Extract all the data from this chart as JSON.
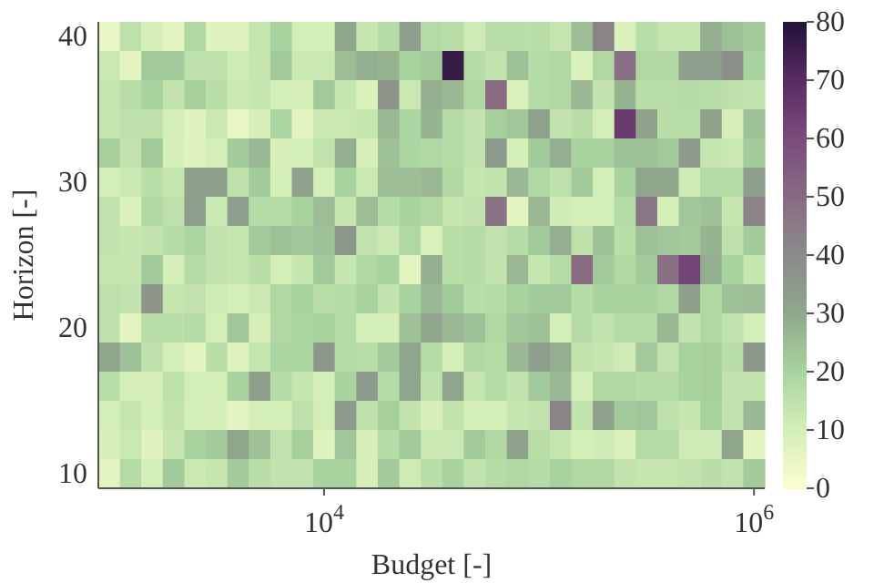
{
  "chart_data": {
    "type": "heatmap",
    "xlabel": "Budget [-]",
    "ylabel": "Horizon [-]",
    "categories": [
      null,
      null,
      null,
      null,
      null,
      null,
      null,
      null,
      null,
      null,
      "10$^{4}$",
      null,
      null,
      null,
      null,
      null,
      null,
      null,
      null,
      null,
      null,
      null,
      null,
      null,
      null,
      null,
      null,
      null,
      null,
      null,
      "10$^{6}$"
    ],
    "y_categories": [
      "40",
      null,
      null,
      null,
      null,
      "30",
      null,
      null,
      null,
      null,
      "20",
      null,
      null,
      null,
      null,
      "10"
    ],
    "clim": [
      0,
      80
    ],
    "cticks": [
      0,
      10,
      20,
      30,
      40,
      50,
      60,
      70,
      80
    ],
    "cells": [
      [
        5,
        15,
        9,
        6,
        18,
        7,
        7,
        13,
        20,
        10,
        10,
        30,
        13,
        17,
        32,
        17,
        16,
        11,
        16,
        16,
        16,
        13,
        25,
        42,
        8,
        16,
        13,
        13,
        28,
        24,
        22
      ],
      [
        12,
        6,
        22,
        22,
        15,
        15,
        11,
        13,
        22,
        12,
        12,
        25,
        28,
        27,
        20,
        22,
        76,
        17,
        14,
        24,
        17,
        18,
        8,
        18,
        48,
        18,
        18,
        33,
        33,
        38,
        20
      ],
      [
        13,
        16,
        20,
        14,
        21,
        16,
        12,
        13,
        10,
        9,
        22,
        13,
        8,
        36,
        12,
        28,
        26,
        18,
        50,
        8,
        17,
        18,
        26,
        14,
        27,
        16,
        16,
        17,
        16,
        15,
        14
      ],
      [
        13,
        15,
        15,
        10,
        7,
        12,
        5,
        9,
        19,
        6,
        12,
        12,
        13,
        26,
        19,
        27,
        17,
        14,
        21,
        23,
        31,
        14,
        16,
        10,
        65,
        31,
        16,
        16,
        31,
        9,
        24
      ],
      [
        21,
        14,
        22,
        9,
        7,
        10,
        22,
        26,
        9,
        10,
        14,
        28,
        9,
        24,
        19,
        18,
        17,
        14,
        34,
        10,
        22,
        28,
        20,
        20,
        24,
        24,
        22,
        34,
        13,
        12,
        22
      ],
      [
        10,
        12,
        16,
        13,
        32,
        32,
        15,
        22,
        10,
        31,
        10,
        20,
        12,
        25,
        25,
        26,
        18,
        13,
        14,
        26,
        18,
        15,
        22,
        10,
        20,
        30,
        30,
        11,
        17,
        17,
        33
      ],
      [
        14,
        8,
        18,
        15,
        33,
        12,
        33,
        17,
        17,
        20,
        25,
        13,
        25,
        17,
        20,
        18,
        13,
        14,
        47,
        6,
        26,
        11,
        10,
        10,
        17,
        46,
        10,
        23,
        24,
        13,
        42
      ],
      [
        14,
        13,
        14,
        17,
        19,
        14,
        13,
        22,
        24,
        23,
        24,
        35,
        14,
        12,
        18,
        8,
        16,
        17,
        14,
        17,
        22,
        28,
        15,
        24,
        16,
        24,
        23,
        22,
        27,
        15,
        22
      ],
      [
        13,
        13,
        22,
        10,
        17,
        14,
        13,
        16,
        10,
        13,
        22,
        13,
        18,
        20,
        6,
        28,
        16,
        17,
        14,
        26,
        13,
        17,
        50,
        22,
        18,
        22,
        48,
        62,
        28,
        20,
        13
      ],
      [
        15,
        14,
        36,
        13,
        14,
        11,
        10,
        12,
        18,
        20,
        16,
        17,
        20,
        14,
        20,
        26,
        22,
        16,
        17,
        20,
        22,
        22,
        17,
        20,
        20,
        20,
        18,
        32,
        18,
        24,
        25
      ],
      [
        15,
        6,
        16,
        16,
        17,
        10,
        23,
        9,
        18,
        19,
        20,
        17,
        10,
        10,
        24,
        30,
        26,
        24,
        18,
        23,
        24,
        10,
        17,
        14,
        17,
        17,
        26,
        14,
        18,
        14,
        10
      ],
      [
        30,
        24,
        15,
        10,
        6,
        16,
        7,
        13,
        19,
        19,
        35,
        17,
        16,
        22,
        30,
        17,
        10,
        18,
        17,
        26,
        32,
        28,
        14,
        13,
        11,
        22,
        14,
        20,
        21,
        16,
        35
      ],
      [
        16,
        10,
        9,
        15,
        10,
        10,
        20,
        32,
        17,
        13,
        10,
        20,
        34,
        17,
        30,
        15,
        30,
        13,
        17,
        14,
        22,
        26,
        10,
        18,
        18,
        17,
        17,
        20,
        21,
        14,
        14
      ],
      [
        10,
        13,
        10,
        14,
        10,
        9,
        6,
        10,
        10,
        15,
        10,
        34,
        15,
        21,
        14,
        9,
        14,
        10,
        10,
        13,
        14,
        42,
        14,
        31,
        22,
        23,
        15,
        13,
        20,
        14,
        26
      ],
      [
        9,
        12,
        7,
        13,
        20,
        22,
        30,
        24,
        14,
        21,
        7,
        23,
        9,
        17,
        22,
        12,
        12,
        22,
        18,
        31,
        16,
        13,
        10,
        11,
        8,
        17,
        17,
        11,
        11,
        30,
        6
      ],
      [
        6,
        17,
        10,
        22,
        12,
        13,
        22,
        16,
        14,
        14,
        20,
        20,
        9,
        22,
        11,
        16,
        20,
        14,
        17,
        18,
        17,
        20,
        18,
        18,
        14,
        13,
        13,
        14,
        16,
        14,
        22
      ]
    ]
  }
}
